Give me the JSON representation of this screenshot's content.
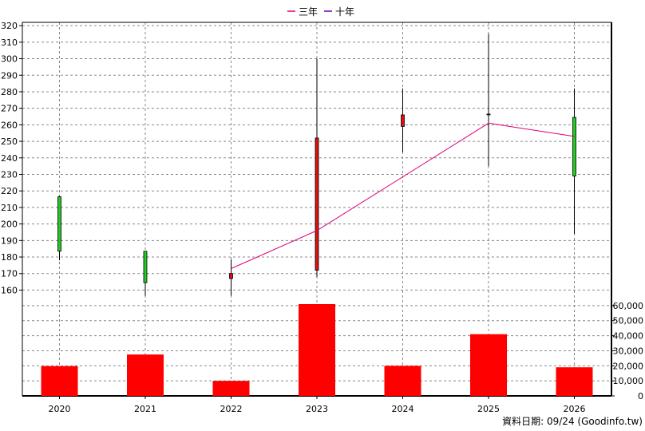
{
  "chart_data": {
    "type": "candlestick-with-volume",
    "categories": [
      "2020",
      "2021",
      "2022",
      "2023",
      "2024",
      "2025",
      "2026"
    ],
    "legend": [
      {
        "name": "三年",
        "color": "#e0007a"
      },
      {
        "name": "十年",
        "color": "#6a00a8"
      }
    ],
    "price_axis": {
      "ticks": [
        160,
        170,
        180,
        190,
        200,
        210,
        220,
        230,
        240,
        250,
        260,
        270,
        280,
        290,
        300,
        310,
        320
      ],
      "ylim": [
        152,
        322
      ]
    },
    "volume_axis": {
      "ticks": [
        0,
        10000,
        20000,
        30000,
        40000,
        50000,
        60000
      ],
      "tick_labels": [
        "0",
        "10,000",
        "20,000",
        "30,000",
        "40,000",
        "50,000",
        "60,000"
      ],
      "ylim": [
        0,
        61000
      ]
    },
    "candles": [
      {
        "x": "2020",
        "open": 183.5,
        "close": 216.5,
        "high": 217,
        "low": 178,
        "color": "#22cc22"
      },
      {
        "x": "2021",
        "open": 164.5,
        "close": 183.5,
        "high": 183.5,
        "low": 156.5,
        "color": "#22cc22"
      },
      {
        "x": "2022",
        "open": 170,
        "close": 167,
        "high": 178.5,
        "low": 156.5,
        "color": "#dd1111"
      },
      {
        "x": "2023",
        "open": 172,
        "close": 252,
        "high": 300,
        "low": 168,
        "color": "#dd1111"
      },
      {
        "x": "2024",
        "open": 259,
        "close": 266,
        "high": 282,
        "low": 243.5,
        "color": "#dd1111"
      },
      {
        "x": "2025",
        "open": 266.5,
        "close": 266.5,
        "high": 315,
        "low": 235,
        "color": "#dd1111"
      },
      {
        "x": "2026",
        "open": 229,
        "close": 264.5,
        "high": 282,
        "low": 194,
        "color": "#22cc22"
      }
    ],
    "series": [
      {
        "name": "三年",
        "type": "line",
        "color": "#e0007a",
        "points": [
          {
            "x": "2022",
            "y": 173
          },
          {
            "x": "2023",
            "y": 196
          },
          {
            "x": "2025",
            "y": 261
          },
          {
            "x": "2026",
            "y": 253
          }
        ]
      }
    ],
    "volume": [
      {
        "x": "2020",
        "value": 19800
      },
      {
        "x": "2021",
        "value": 27500
      },
      {
        "x": "2022",
        "value": 10000
      },
      {
        "x": "2023",
        "value": 61000
      },
      {
        "x": "2024",
        "value": 20000
      },
      {
        "x": "2025",
        "value": 41000
      },
      {
        "x": "2026",
        "value": 19000
      }
    ],
    "volume_color": "#ff0000",
    "grid": true
  },
  "footer": {
    "text": "資料日期: 09/24  (Goodinfo.tw)"
  }
}
